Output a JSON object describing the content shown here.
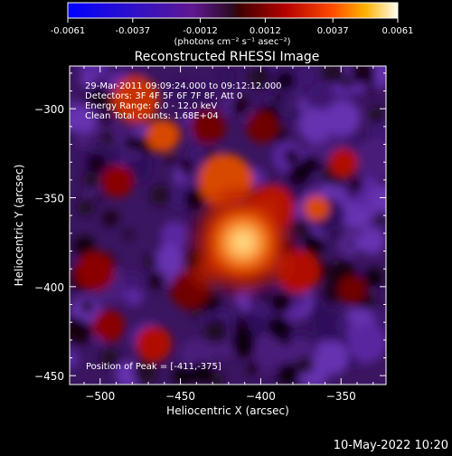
{
  "colorbar": {
    "tick_labels": [
      "-0.0061",
      "-0.0037",
      "-0.0012",
      "0.0012",
      "0.0037",
      "0.0061"
    ],
    "unit_label": "(photons cm⁻² s⁻¹ asec⁻²)"
  },
  "title": "Reconstructed RHESSI Image",
  "annotations": [
    "29-Mar-2011 09:09:24.000 to 09:12:12.000",
    "Detectors: 3F 4F 5F 6F 7F 8F, Att 0",
    "Energy Range: 6.0 - 12.0 keV",
    "Clean     Total counts: 1.68E+04"
  ],
  "peak_label": "Position of Peak = [-411,-375]",
  "timestamp": "10-May-2022 10:20",
  "chart_data": {
    "type": "heatmap",
    "title": "Reconstructed RHESSI Image",
    "xlabel": "Heliocentric X (arcsec)",
    "ylabel": "Heliocentric Y (arcsec)",
    "xlim": [
      -519,
      -322
    ],
    "ylim": [
      -455,
      -276
    ],
    "xticks": [
      -500,
      -450,
      -400,
      -350
    ],
    "xtick_labels": [
      "−500",
      "−450",
      "−400",
      "−350"
    ],
    "yticks": [
      -300,
      -350,
      -400,
      -450
    ],
    "ytick_labels": [
      "−300",
      "−350",
      "−400",
      "−450"
    ],
    "colorbar_range": [
      -0.0061,
      0.0061
    ],
    "colormap": "hot-with-blue-negative",
    "peak_position": [
      -411,
      -375
    ],
    "grid": false
  }
}
